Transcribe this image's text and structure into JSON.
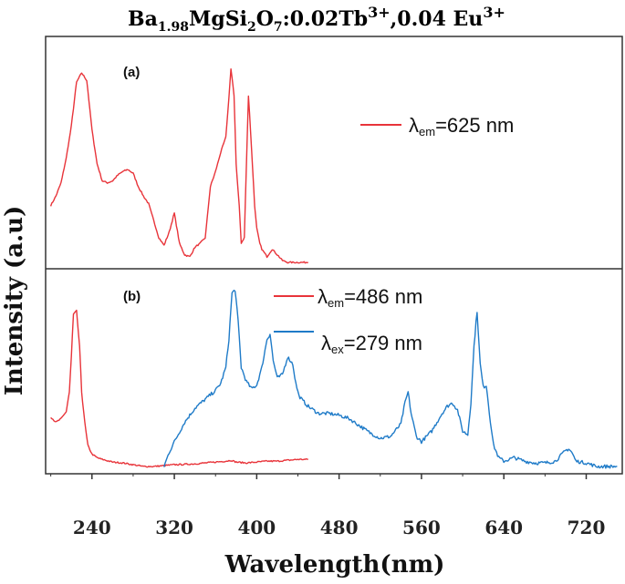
{
  "chart_data": {
    "type": "line",
    "title": {
      "prefix": "Ba",
      "sub1": "1.98",
      "mid1": "MgSi",
      "sub2": "2",
      "mid2": "O",
      "sub3": "7",
      "mid3": ":0.02Tb",
      "sup1": "3+",
      "mid4": ",0.04 Eu",
      "sup2": "3+"
    },
    "xlabel": "Wavelength(nm)",
    "ylabel": "Intensity (a.u)",
    "xlim": [
      195,
      755
    ],
    "xticks": [
      240,
      320,
      400,
      480,
      560,
      640,
      720
    ],
    "panels": [
      {
        "label": "(a)",
        "series": [
          {
            "name": "λem=625 nm",
            "legend_main": "λ",
            "legend_sub": "em",
            "legend_rest": "=625 nm",
            "color": "#e8343a",
            "x": [
              200,
              205,
              210,
              215,
              220,
              225,
              230,
              235,
              240,
              245,
              250,
              255,
              260,
              265,
              270,
              275,
              280,
              285,
              290,
              295,
              300,
              305,
              310,
              315,
              320,
              325,
              330,
              335,
              340,
              345,
              350,
              355,
              360,
              365,
              370,
              372,
              375,
              378,
              380,
              383,
              385,
              388,
              390,
              392,
              395,
              398,
              400,
              403,
              405,
              410,
              415,
              420,
              425,
              430,
              440,
              450
            ],
            "y": [
              0.3,
              0.35,
              0.42,
              0.55,
              0.72,
              0.95,
              1.0,
              0.96,
              0.7,
              0.52,
              0.43,
              0.42,
              0.43,
              0.46,
              0.48,
              0.49,
              0.47,
              0.4,
              0.35,
              0.31,
              0.22,
              0.13,
              0.09,
              0.16,
              0.26,
              0.1,
              0.04,
              0.03,
              0.08,
              0.1,
              0.13,
              0.4,
              0.48,
              0.58,
              0.66,
              0.8,
              1.02,
              0.88,
              0.52,
              0.3,
              0.1,
              0.13,
              0.52,
              0.88,
              0.6,
              0.3,
              0.18,
              0.1,
              0.07,
              0.03,
              0.07,
              0.04,
              0.01,
              0.0,
              0.0,
              0.0
            ]
          }
        ]
      },
      {
        "label": "(b)",
        "series": [
          {
            "name": "λem=486 nm",
            "legend_main": "λ",
            "legend_sub": "em",
            "legend_rest": "=486 nm",
            "color": "#e8343a",
            "x": [
              200,
              205,
              210,
              215,
              218,
              220,
              222,
              225,
              228,
              230,
              233,
              236,
              240,
              245,
              250,
              260,
              270,
              280,
              290,
              300,
              310,
              320,
              330,
              340,
              350,
              360,
              370,
              375,
              380,
              390,
              400,
              410,
              420,
              430,
              440,
              450
            ],
            "y": [
              0.28,
              0.25,
              0.27,
              0.31,
              0.42,
              0.62,
              0.86,
              0.88,
              0.68,
              0.42,
              0.25,
              0.12,
              0.07,
              0.05,
              0.04,
              0.025,
              0.02,
              0.01,
              0.0,
              0.0,
              0.005,
              0.01,
              0.012,
              0.015,
              0.02,
              0.025,
              0.03,
              0.035,
              0.025,
              0.02,
              0.025,
              0.03,
              0.03,
              0.035,
              0.04,
              0.04
            ]
          },
          {
            "name": "λex=279 nm",
            "legend_main": "λ",
            "legend_sub": "ex",
            "legend_rest": "=279 nm",
            "color": "#1f7bc8",
            "x": [
              310,
              315,
              320,
              330,
              340,
              350,
              360,
              365,
              370,
              373,
              376,
              379,
              382,
              385,
              390,
              395,
              400,
              405,
              410,
              413,
              416,
              420,
              425,
              430,
              435,
              438,
              441,
              445,
              450,
              455,
              460,
              470,
              480,
              490,
              500,
              510,
              520,
              530,
              540,
              544,
              547,
              550,
              555,
              560,
              570,
              580,
              585,
              590,
              595,
              600,
              605,
              608,
              611,
              614,
              617,
              620,
              623,
              626,
              630,
              635,
              640,
              650,
              660,
              670,
              680,
              690,
              695,
              700,
              703,
              706,
              710,
              720,
              730,
              740,
              750
            ],
            "y": [
              0.0,
              0.08,
              0.14,
              0.25,
              0.33,
              0.38,
              0.43,
              0.47,
              0.56,
              0.72,
              0.98,
              1.0,
              0.82,
              0.56,
              0.48,
              0.44,
              0.46,
              0.56,
              0.72,
              0.75,
              0.6,
              0.5,
              0.52,
              0.62,
              0.58,
              0.47,
              0.4,
              0.37,
              0.34,
              0.32,
              0.3,
              0.3,
              0.29,
              0.27,
              0.23,
              0.19,
              0.16,
              0.17,
              0.24,
              0.36,
              0.42,
              0.3,
              0.17,
              0.14,
              0.2,
              0.3,
              0.34,
              0.36,
              0.32,
              0.2,
              0.18,
              0.36,
              0.68,
              0.88,
              0.58,
              0.45,
              0.46,
              0.3,
              0.12,
              0.05,
              0.03,
              0.05,
              0.03,
              0.02,
              0.02,
              0.03,
              0.06,
              0.09,
              0.1,
              0.08,
              0.03,
              0.02,
              0.0,
              0.0,
              0.0
            ]
          }
        ]
      }
    ]
  }
}
